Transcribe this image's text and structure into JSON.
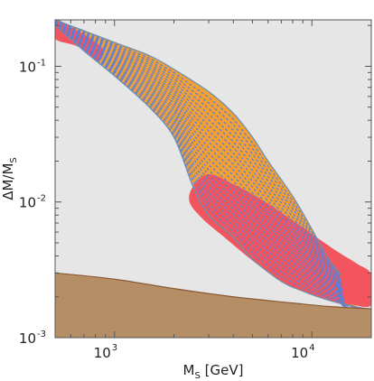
{
  "chart_data": {
    "type": "area",
    "title": "",
    "xlabel": {
      "main": "M",
      "sub": "S",
      "unit": " [GeV]"
    },
    "ylabel": {
      "main": "ΔM/M",
      "sub": "S"
    },
    "xscale": "log",
    "yscale": "log",
    "xlim": [
      500,
      20000
    ],
    "ylim": [
      0.001,
      0.22
    ],
    "x_ticks": [
      {
        "base": "10",
        "exp": "3",
        "value": 1000
      },
      {
        "base": "10",
        "exp": "4",
        "value": 10000
      }
    ],
    "y_ticks": [
      {
        "base": "10",
        "exp": "-3",
        "value": 0.001
      },
      {
        "base": "10",
        "exp": "-2",
        "value": 0.01
      },
      {
        "base": "10",
        "exp": "-1",
        "value": 0.1
      }
    ],
    "colors": {
      "background": "#e6e6e6",
      "excluded_region": "#b58e66",
      "excluded_edge": "#8a5a34",
      "band": "#f5a033",
      "band_edge": "#6f8fb0",
      "red_region": "#f2555e",
      "dashes": "#5b7fd6"
    },
    "series": [
      {
        "region": "excluded_bottom",
        "x": [
          500,
          1000,
          2000,
          4000,
          8000,
          12000,
          20000
        ],
        "y": [
          0.003,
          0.0027,
          0.0023,
          0.002,
          0.0018,
          0.0017,
          0.00163
        ]
      },
      {
        "region": "band_upper_edge",
        "x": [
          500,
          1000,
          1500,
          2000,
          3000,
          4000,
          5000,
          6000,
          8000,
          10000,
          12000,
          14000
        ],
        "y": [
          0.22,
          0.15,
          0.12,
          0.095,
          0.065,
          0.045,
          0.03,
          0.02,
          0.011,
          0.0063,
          0.0039,
          0.0029
        ]
      },
      {
        "region": "band_lower_edge",
        "x": [
          500,
          700,
          1000,
          1500,
          2000,
          2500,
          3000,
          4000,
          5000,
          7000,
          9000,
          12000,
          16000,
          20000
        ],
        "y": [
          0.2,
          0.13,
          0.085,
          0.05,
          0.03,
          0.013,
          0.008,
          0.0055,
          0.0038,
          0.0026,
          0.0022,
          0.0019,
          0.0017,
          0.0016
        ]
      },
      {
        "region": "red_top",
        "x": [
          500,
          620,
          780,
          880,
          820,
          650,
          500
        ],
        "y": [
          0.22,
          0.19,
          0.155,
          0.13,
          0.11,
          0.14,
          0.16
        ]
      },
      {
        "region": "red_bottom",
        "x": [
          2500,
          3000,
          4000,
          5500,
          7500,
          10000,
          13500,
          17000,
          20000,
          20000,
          16000,
          12000,
          9000,
          7000,
          5000,
          3600,
          2800,
          2400
        ],
        "y": [
          0.013,
          0.016,
          0.0135,
          0.0105,
          0.0078,
          0.0058,
          0.0043,
          0.0035,
          0.0029,
          0.00175,
          0.00175,
          0.0019,
          0.0022,
          0.0026,
          0.0037,
          0.0055,
          0.0075,
          0.01
        ]
      }
    ]
  }
}
